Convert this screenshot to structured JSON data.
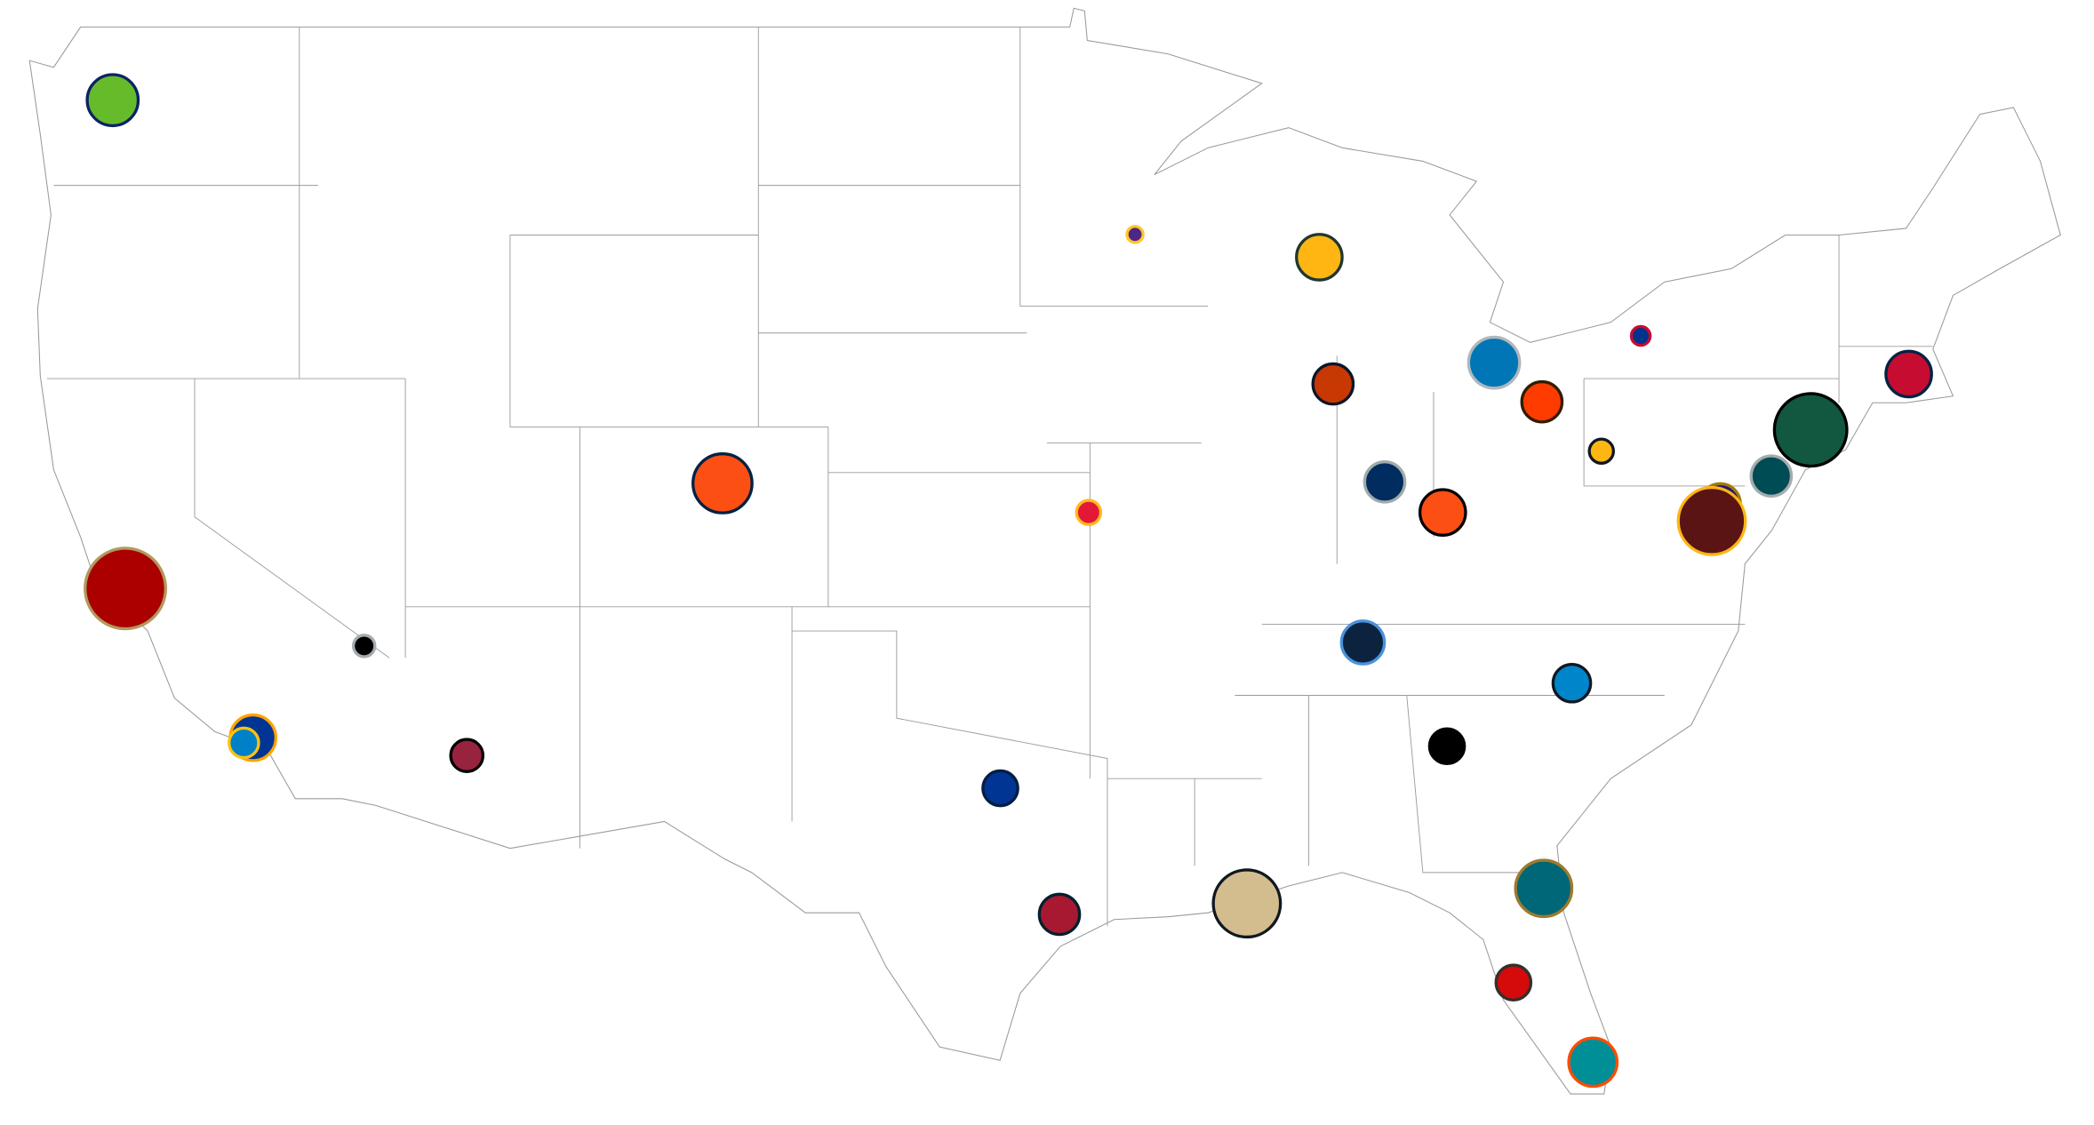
{
  "chart_data": {
    "type": "bubble",
    "x": [
      -122.33,
      -93.26,
      -88.02,
      -83.05,
      -78.88,
      -71.26,
      -87.63,
      -81.69,
      -74.07,
      -74.05,
      -80.0,
      -75.17,
      -104.99,
      -86.16,
      -76.62,
      -94.58,
      -84.51,
      -76.86,
      -121.97,
      -115.18,
      -86.78,
      -80.84,
      -118.34,
      -118.6,
      -84.39,
      -112.26,
      -97.09,
      -81.64,
      -90.08,
      -95.41,
      -82.5,
      -80.24
    ],
    "y": [
      47.61,
      44.97,
      44.51,
      42.33,
      42.89,
      42.09,
      41.88,
      41.5,
      40.81,
      40.9,
      40.44,
      39.9,
      39.74,
      39.77,
      39.29,
      39.1,
      39.1,
      38.91,
      37.4,
      36.09,
      36.17,
      35.23,
      33.95,
      33.83,
      33.75,
      33.53,
      32.75,
      30.32,
      29.95,
      29.68,
      27.98,
      25.96
    ],
    "sizes": [
      19,
      6,
      17,
      19,
      7,
      17,
      15,
      15,
      21,
      27,
      9,
      15,
      22,
      15,
      15,
      9,
      17,
      25,
      30,
      8,
      16,
      14,
      17,
      11,
      13,
      12,
      13,
      21,
      25,
      15,
      13,
      18
    ],
    "colors": [
      "#66bb2a",
      "#4f2683",
      "#ffb612",
      "#0076b6",
      "#00338d",
      "#c60c30",
      "#c83803",
      "#ff3c00",
      "#0b2265",
      "#125740",
      "#ffb612",
      "#004c54",
      "#fb4f14",
      "#002c5f",
      "#241773",
      "#e31837",
      "#fb4f14",
      "#5a1414",
      "#aa0000",
      "#000000",
      "#0c2340",
      "#0085ca",
      "#003594",
      "#0080c6",
      "#000000",
      "#97233f",
      "#003594",
      "#006778",
      "#d3bc8d",
      "#a71930",
      "#d50a0a",
      "#008e97"
    ],
    "edge_colors": [
      "#0b2265",
      "#ffc62f",
      "#203731",
      "#b0b7bc",
      "#c60c30",
      "#002244",
      "#0b162a",
      "#311d00",
      "#a71930",
      "#000000",
      "#101820",
      "#a5acaf",
      "#002244",
      "#a2aaad",
      "#9e7c0c",
      "#ffb81c",
      "#000000",
      "#ffb612",
      "#b3995d",
      "#a5acaf",
      "#4b92db",
      "#101820",
      "#ffa300",
      "#ffc20e",
      "#000000",
      "#000000",
      "#041e42",
      "#9f792c",
      "#101820",
      "#03202f",
      "#34302b",
      "#fc4c02"
    ]
  }
}
